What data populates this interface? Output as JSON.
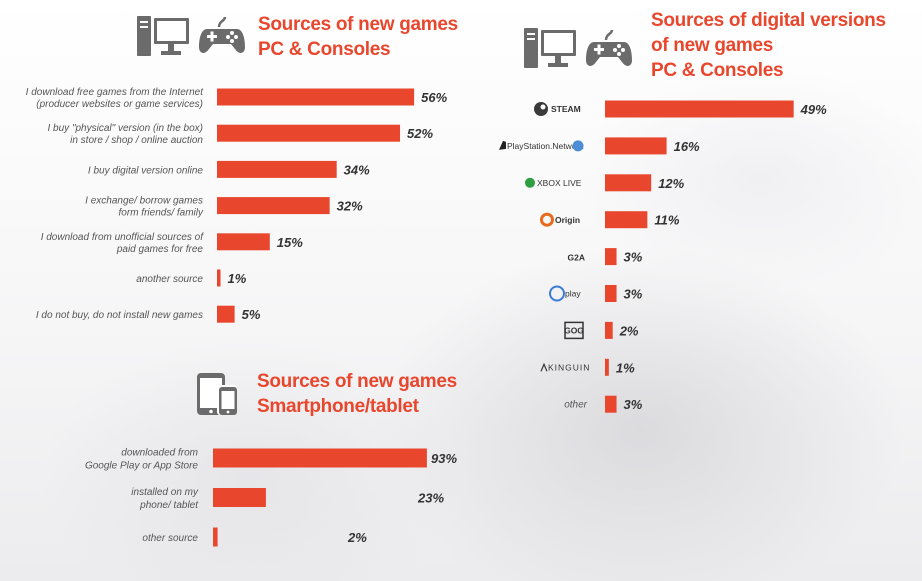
{
  "colors": {
    "bar": "#e8472e",
    "title": "#e8472e",
    "icon": "#6b6b6b"
  },
  "panels": {
    "pc": {
      "title_line1": "Sources of new games",
      "title_line2": "PC & Consoles",
      "icons": [
        "computer-icon",
        "gamepad-icon"
      ]
    },
    "digital": {
      "title_line1": "Sources of digital versions",
      "title_line2": "of new games",
      "title_line3": "PC & Consoles",
      "icons": [
        "computer-icon",
        "gamepad-icon"
      ]
    },
    "mobile": {
      "title_line1": "Sources of new games",
      "title_line2": "Smartphone/tablet",
      "icons": [
        "phone-tablet-icon"
      ]
    }
  },
  "chart_data": [
    {
      "type": "bar",
      "orientation": "horizontal",
      "title": "Sources of new games PC & Consoles",
      "categories": [
        [
          "I download free games from the Internet",
          "(producer websites  or game services)"
        ],
        [
          "I buy  \"physical\" version (in the box)",
          "in store / shop / online auction"
        ],
        [
          "I buy digital version online"
        ],
        [
          "I exchange/ borrow games",
          "form friends/ family"
        ],
        [
          "I download from  unofficial sources of",
          "paid games for free"
        ],
        [
          "another source"
        ],
        [
          "I do not buy, do not install new games"
        ]
      ],
      "values": [
        56,
        52,
        34,
        32,
        15,
        1,
        5
      ],
      "value_labels": [
        "56%",
        "52%",
        "34%",
        "32%",
        "15%",
        "1%",
        "5%"
      ],
      "unit": "%"
    },
    {
      "type": "bar",
      "orientation": "horizontal",
      "title": "Sources of digital versions of new games PC & Consoles",
      "categories": [
        [
          "STEAM"
        ],
        [
          "PlayStation Network"
        ],
        [
          "XBOX LIVE"
        ],
        [
          "Origin"
        ],
        [
          "G2A"
        ],
        [
          "Uplay"
        ],
        [
          "GOG.com"
        ],
        [
          "KINGUIN"
        ],
        [
          "other"
        ]
      ],
      "category_logos": [
        "steam-logo",
        "playstation-network-logo",
        "xbox-live-logo",
        "origin-logo",
        "g2a-logo",
        "uplay-logo",
        "gog-logo",
        "kinguin-logo",
        "none"
      ],
      "values": [
        49,
        16,
        12,
        11,
        3,
        3,
        2,
        1,
        3
      ],
      "value_labels": [
        "49%",
        "16%",
        "12%",
        "11%",
        "3%",
        "3%",
        "2%",
        "1%",
        "3%"
      ],
      "unit": "%"
    },
    {
      "type": "bar",
      "orientation": "horizontal",
      "title": "Sources of new games Smartphone/tablet",
      "categories": [
        [
          "downloaded from",
          "Google Play or App Store"
        ],
        [
          "installed on my",
          "phone/ tablet"
        ],
        [
          "other source"
        ]
      ],
      "values": [
        93,
        23,
        2
      ],
      "value_labels": [
        "93%",
        "23%",
        "2%"
      ],
      "unit": "%"
    }
  ]
}
